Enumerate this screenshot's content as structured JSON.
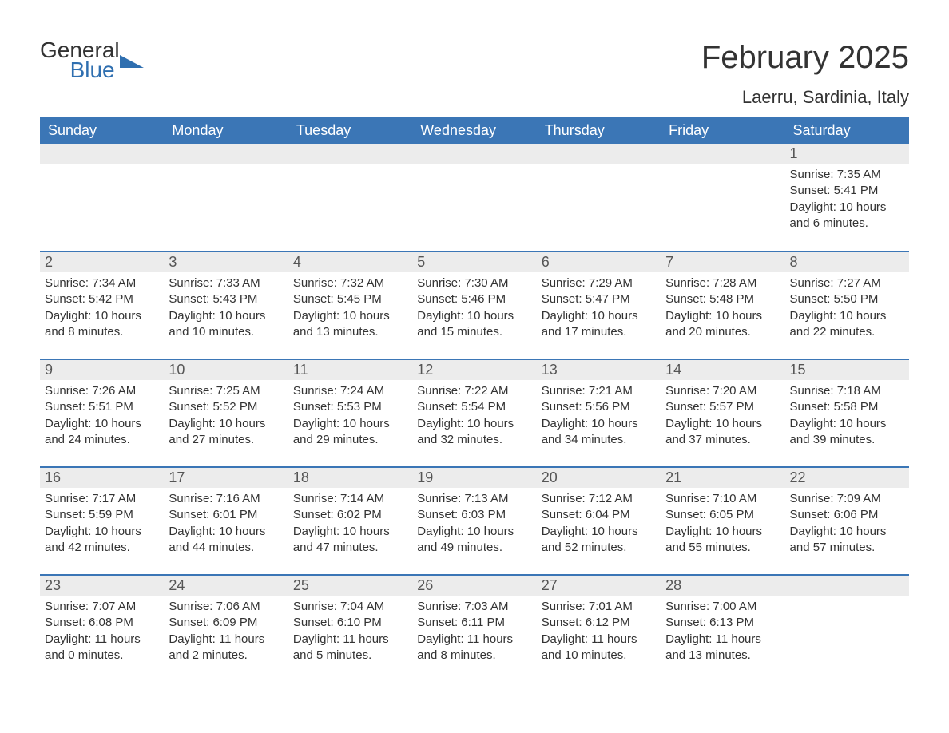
{
  "brand": {
    "top": "General",
    "bottom": "Blue"
  },
  "title": "February 2025",
  "location": "Laerru, Sardinia, Italy",
  "colors": {
    "header_bg": "#3b76b6",
    "header_text": "#ffffff",
    "daynum_bg": "#ececec",
    "text": "#333333",
    "brand_blue": "#2f6fb0"
  },
  "day_headers": [
    "Sunday",
    "Monday",
    "Tuesday",
    "Wednesday",
    "Thursday",
    "Friday",
    "Saturday"
  ],
  "weeks": [
    [
      {
        "blank": true
      },
      {
        "blank": true
      },
      {
        "blank": true
      },
      {
        "blank": true
      },
      {
        "blank": true
      },
      {
        "blank": true
      },
      {
        "n": "1",
        "sunrise": "Sunrise: 7:35 AM",
        "sunset": "Sunset: 5:41 PM",
        "day1": "Daylight: 10 hours",
        "day2": "and 6 minutes."
      }
    ],
    [
      {
        "n": "2",
        "sunrise": "Sunrise: 7:34 AM",
        "sunset": "Sunset: 5:42 PM",
        "day1": "Daylight: 10 hours",
        "day2": "and 8 minutes."
      },
      {
        "n": "3",
        "sunrise": "Sunrise: 7:33 AM",
        "sunset": "Sunset: 5:43 PM",
        "day1": "Daylight: 10 hours",
        "day2": "and 10 minutes."
      },
      {
        "n": "4",
        "sunrise": "Sunrise: 7:32 AM",
        "sunset": "Sunset: 5:45 PM",
        "day1": "Daylight: 10 hours",
        "day2": "and 13 minutes."
      },
      {
        "n": "5",
        "sunrise": "Sunrise: 7:30 AM",
        "sunset": "Sunset: 5:46 PM",
        "day1": "Daylight: 10 hours",
        "day2": "and 15 minutes."
      },
      {
        "n": "6",
        "sunrise": "Sunrise: 7:29 AM",
        "sunset": "Sunset: 5:47 PM",
        "day1": "Daylight: 10 hours",
        "day2": "and 17 minutes."
      },
      {
        "n": "7",
        "sunrise": "Sunrise: 7:28 AM",
        "sunset": "Sunset: 5:48 PM",
        "day1": "Daylight: 10 hours",
        "day2": "and 20 minutes."
      },
      {
        "n": "8",
        "sunrise": "Sunrise: 7:27 AM",
        "sunset": "Sunset: 5:50 PM",
        "day1": "Daylight: 10 hours",
        "day2": "and 22 minutes."
      }
    ],
    [
      {
        "n": "9",
        "sunrise": "Sunrise: 7:26 AM",
        "sunset": "Sunset: 5:51 PM",
        "day1": "Daylight: 10 hours",
        "day2": "and 24 minutes."
      },
      {
        "n": "10",
        "sunrise": "Sunrise: 7:25 AM",
        "sunset": "Sunset: 5:52 PM",
        "day1": "Daylight: 10 hours",
        "day2": "and 27 minutes."
      },
      {
        "n": "11",
        "sunrise": "Sunrise: 7:24 AM",
        "sunset": "Sunset: 5:53 PM",
        "day1": "Daylight: 10 hours",
        "day2": "and 29 minutes."
      },
      {
        "n": "12",
        "sunrise": "Sunrise: 7:22 AM",
        "sunset": "Sunset: 5:54 PM",
        "day1": "Daylight: 10 hours",
        "day2": "and 32 minutes."
      },
      {
        "n": "13",
        "sunrise": "Sunrise: 7:21 AM",
        "sunset": "Sunset: 5:56 PM",
        "day1": "Daylight: 10 hours",
        "day2": "and 34 minutes."
      },
      {
        "n": "14",
        "sunrise": "Sunrise: 7:20 AM",
        "sunset": "Sunset: 5:57 PM",
        "day1": "Daylight: 10 hours",
        "day2": "and 37 minutes."
      },
      {
        "n": "15",
        "sunrise": "Sunrise: 7:18 AM",
        "sunset": "Sunset: 5:58 PM",
        "day1": "Daylight: 10 hours",
        "day2": "and 39 minutes."
      }
    ],
    [
      {
        "n": "16",
        "sunrise": "Sunrise: 7:17 AM",
        "sunset": "Sunset: 5:59 PM",
        "day1": "Daylight: 10 hours",
        "day2": "and 42 minutes."
      },
      {
        "n": "17",
        "sunrise": "Sunrise: 7:16 AM",
        "sunset": "Sunset: 6:01 PM",
        "day1": "Daylight: 10 hours",
        "day2": "and 44 minutes."
      },
      {
        "n": "18",
        "sunrise": "Sunrise: 7:14 AM",
        "sunset": "Sunset: 6:02 PM",
        "day1": "Daylight: 10 hours",
        "day2": "and 47 minutes."
      },
      {
        "n": "19",
        "sunrise": "Sunrise: 7:13 AM",
        "sunset": "Sunset: 6:03 PM",
        "day1": "Daylight: 10 hours",
        "day2": "and 49 minutes."
      },
      {
        "n": "20",
        "sunrise": "Sunrise: 7:12 AM",
        "sunset": "Sunset: 6:04 PM",
        "day1": "Daylight: 10 hours",
        "day2": "and 52 minutes."
      },
      {
        "n": "21",
        "sunrise": "Sunrise: 7:10 AM",
        "sunset": "Sunset: 6:05 PM",
        "day1": "Daylight: 10 hours",
        "day2": "and 55 minutes."
      },
      {
        "n": "22",
        "sunrise": "Sunrise: 7:09 AM",
        "sunset": "Sunset: 6:06 PM",
        "day1": "Daylight: 10 hours",
        "day2": "and 57 minutes."
      }
    ],
    [
      {
        "n": "23",
        "sunrise": "Sunrise: 7:07 AM",
        "sunset": "Sunset: 6:08 PM",
        "day1": "Daylight: 11 hours",
        "day2": "and 0 minutes."
      },
      {
        "n": "24",
        "sunrise": "Sunrise: 7:06 AM",
        "sunset": "Sunset: 6:09 PM",
        "day1": "Daylight: 11 hours",
        "day2": "and 2 minutes."
      },
      {
        "n": "25",
        "sunrise": "Sunrise: 7:04 AM",
        "sunset": "Sunset: 6:10 PM",
        "day1": "Daylight: 11 hours",
        "day2": "and 5 minutes."
      },
      {
        "n": "26",
        "sunrise": "Sunrise: 7:03 AM",
        "sunset": "Sunset: 6:11 PM",
        "day1": "Daylight: 11 hours",
        "day2": "and 8 minutes."
      },
      {
        "n": "27",
        "sunrise": "Sunrise: 7:01 AM",
        "sunset": "Sunset: 6:12 PM",
        "day1": "Daylight: 11 hours",
        "day2": "and 10 minutes."
      },
      {
        "n": "28",
        "sunrise": "Sunrise: 7:00 AM",
        "sunset": "Sunset: 6:13 PM",
        "day1": "Daylight: 11 hours",
        "day2": "and 13 minutes."
      },
      {
        "blank": true
      }
    ]
  ]
}
